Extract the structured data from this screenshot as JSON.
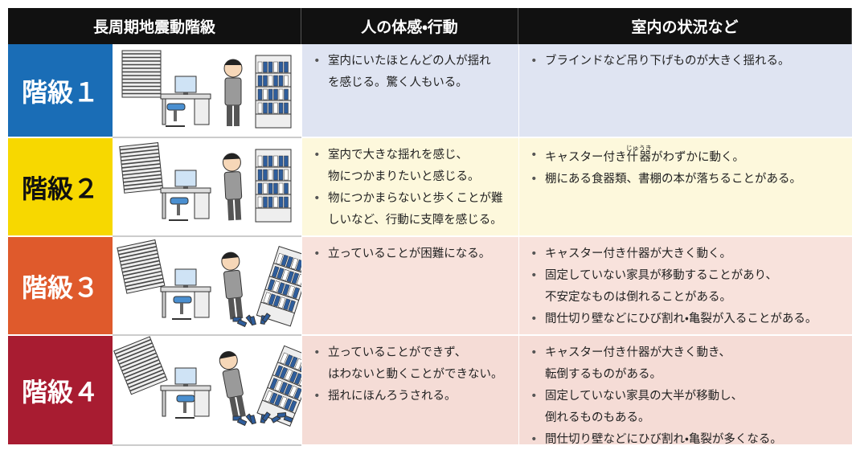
{
  "header": {
    "columns": [
      "長周期地震動階級",
      "人の体感・行動",
      "室内の状況など"
    ]
  },
  "rows": [
    {
      "level": "階級１",
      "sensation": [
        [
          "室内にいたほとんどの人が揺れ",
          "を感じる。驚く人もいる。"
        ]
      ],
      "room": [
        [
          "ブラインドなど吊り下げものが大きく揺れる。"
        ]
      ]
    },
    {
      "level": "階級２",
      "sensation": [
        [
          "室内で大きな揺れを感じ、",
          "物につかまりたいと感じる。"
        ],
        [
          "物につかまらないと歩くことが難",
          "しいなど、行動に支障を感じる。"
        ]
      ],
      "room": [
        [
          {
            "pre": "キャスター付き",
            "base": "什器",
            "ruby": "じゅうき",
            "post": "がわずかに動く。"
          }
        ],
        [
          "棚にある食器類、書棚の本が落ちることがある。"
        ]
      ]
    },
    {
      "level": "階級３",
      "sensation": [
        [
          "立っていることが困難になる。"
        ]
      ],
      "room": [
        [
          "キャスター付き什器が大きく動く。"
        ],
        [
          "固定していない家具が移動することがあり、",
          "不安定なものは倒れることがある。"
        ],
        [
          "間仕切り壁などにひび割れ・亀裂が入ることがある。"
        ]
      ]
    },
    {
      "level": "階級４",
      "sensation": [
        [
          "立っていることができず、",
          "はわないと動くことができない。"
        ],
        [
          "揺れにほんろうされる。"
        ]
      ],
      "room": [
        [
          "キャスター付き什器が大きく動き、",
          "転倒するものがある。"
        ],
        [
          "固定していない家具の大半が移動し、",
          "倒れるものもある。"
        ],
        [
          "間仕切り壁などにひび割れ・亀裂が多くなる。"
        ]
      ]
    }
  ]
}
